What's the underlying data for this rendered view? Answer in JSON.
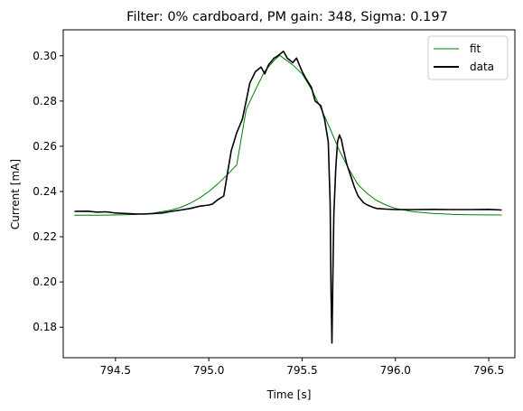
{
  "chart_data": {
    "type": "line",
    "title": "Filter: 0% cardboard, PM gain: 348, Sigma: 0.197",
    "xlabel": "Time [s]",
    "ylabel": "Current [mA]",
    "xlim": [
      794.22,
      796.64
    ],
    "ylim": [
      0.1665,
      0.3115
    ],
    "xticks": [
      794.5,
      795.0,
      795.5,
      796.0,
      796.5
    ],
    "xtick_labels": [
      "794.5",
      "795.0",
      "795.5",
      "796.0",
      "796.5"
    ],
    "yticks": [
      0.18,
      0.2,
      0.22,
      0.24,
      0.26,
      0.28,
      0.3
    ],
    "ytick_labels": [
      "0.18",
      "0.20",
      "0.22",
      "0.24",
      "0.26",
      "0.28",
      "0.30"
    ],
    "grid": false,
    "legend": {
      "placement": "top-right"
    },
    "colors": {
      "fit": "#008000",
      "data": "#000000"
    },
    "fit": {
      "model": "gaussian",
      "baseline": 0.2295,
      "amplitude": 0.0707,
      "center": 795.38,
      "sigma": 0.197
    },
    "series": [
      {
        "name": "fit",
        "color": "#008000",
        "x": [
          794.28,
          794.4,
          794.5,
          794.6,
          794.7,
          794.8,
          794.85,
          794.9,
          794.95,
          795.0,
          795.05,
          795.1,
          795.15,
          795.2,
          795.25,
          795.3,
          795.35,
          795.38,
          795.45,
          795.5,
          795.55,
          795.6,
          795.65,
          795.7,
          795.75,
          795.8,
          795.85,
          795.9,
          795.95,
          796.0,
          796.1,
          796.2,
          796.3,
          796.4,
          796.57
        ],
        "y": [
          0.2295,
          0.2295,
          0.2296,
          0.2298,
          0.2304,
          0.2318,
          0.233,
          0.2348,
          0.2371,
          0.24,
          0.2435,
          0.2475,
          0.2518,
          0.2762,
          0.285,
          0.2932,
          0.298,
          0.3002,
          0.296,
          0.292,
          0.2852,
          0.277,
          0.2677,
          0.258,
          0.25,
          0.243,
          0.239,
          0.236,
          0.234,
          0.2325,
          0.231,
          0.2303,
          0.2299,
          0.2297,
          0.2296
        ]
      },
      {
        "name": "data",
        "color": "#000000",
        "x": [
          794.28,
          794.35,
          794.4,
          794.45,
          794.5,
          794.55,
          794.6,
          794.65,
          794.7,
          794.75,
          794.8,
          794.85,
          794.9,
          794.95,
          795.0,
          795.02,
          795.05,
          795.08,
          795.1,
          795.12,
          795.15,
          795.18,
          795.2,
          795.22,
          795.25,
          795.28,
          795.3,
          795.32,
          795.35,
          795.37,
          795.4,
          795.42,
          795.45,
          795.47,
          795.5,
          795.52,
          795.55,
          795.57,
          795.6,
          795.62,
          795.64,
          795.65,
          795.655,
          795.66,
          795.665,
          795.67,
          795.68,
          795.69,
          795.7,
          795.71,
          795.72,
          795.74,
          795.76,
          795.78,
          795.8,
          795.83,
          795.85,
          795.88,
          795.9,
          795.95,
          796.0,
          796.05,
          796.1,
          796.2,
          796.3,
          796.4,
          796.5,
          796.57
        ],
        "y": [
          0.2312,
          0.2313,
          0.2309,
          0.231,
          0.2305,
          0.2303,
          0.2301,
          0.23,
          0.2302,
          0.2305,
          0.2312,
          0.2318,
          0.2325,
          0.2335,
          0.234,
          0.2345,
          0.2365,
          0.238,
          0.248,
          0.258,
          0.266,
          0.272,
          0.28,
          0.288,
          0.293,
          0.295,
          0.292,
          0.296,
          0.299,
          0.3,
          0.302,
          0.299,
          0.297,
          0.299,
          0.293,
          0.29,
          0.286,
          0.28,
          0.278,
          0.272,
          0.262,
          0.235,
          0.195,
          0.173,
          0.205,
          0.23,
          0.25,
          0.262,
          0.265,
          0.263,
          0.259,
          0.252,
          0.247,
          0.242,
          0.238,
          0.235,
          0.234,
          0.233,
          0.2325,
          0.2322,
          0.232,
          0.232,
          0.232,
          0.2321,
          0.232,
          0.232,
          0.2321,
          0.2318
        ]
      }
    ]
  }
}
